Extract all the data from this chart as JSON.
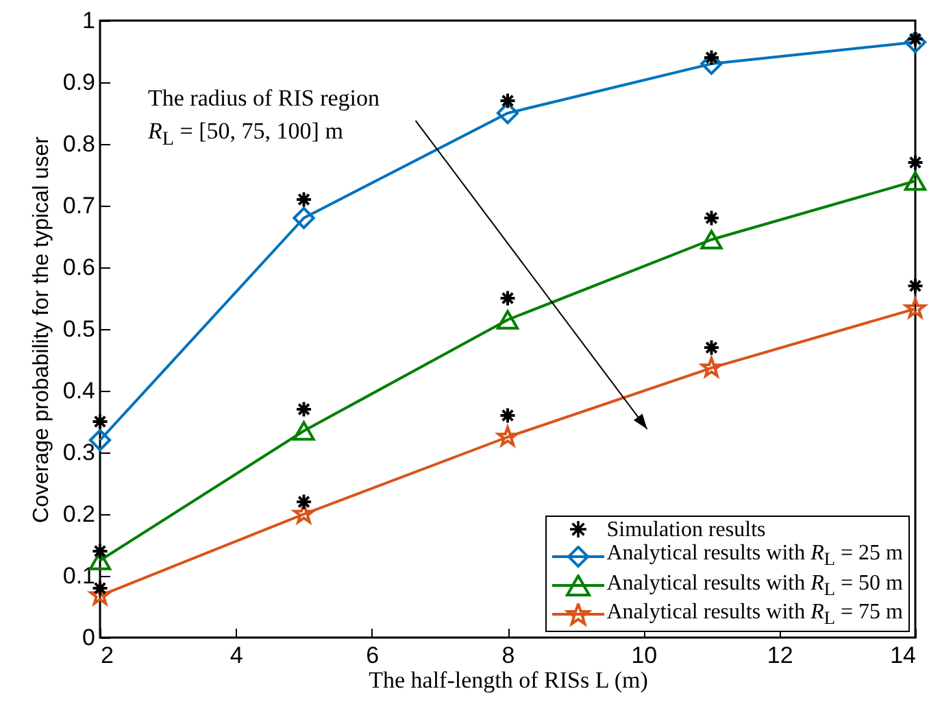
{
  "chart_data": {
    "type": "line",
    "xlabel": "The half-length of RISs L (m)",
    "ylabel": "Coverage probability for the typical user",
    "x": [
      2,
      5,
      8,
      11,
      14
    ],
    "xlim": [
      2,
      14
    ],
    "xticks": [
      2,
      4,
      6,
      8,
      10,
      12,
      14
    ],
    "ylim": [
      0,
      1
    ],
    "yticks": [
      0,
      0.1,
      0.2,
      0.3,
      0.4,
      0.5,
      0.6,
      0.7,
      0.8,
      0.9,
      1
    ],
    "legend": "bottom right",
    "series": [
      {
        "name": "Simulation results",
        "type": "scatter",
        "marker": "cross",
        "color": "#000000",
        "x": [
          2,
          5,
          8,
          11,
          14,
          2,
          5,
          8,
          11,
          14,
          2,
          5,
          8,
          11,
          14
        ],
        "values": [
          0.35,
          0.71,
          0.87,
          0.94,
          0.97,
          0.14,
          0.37,
          0.55,
          0.68,
          0.77,
          0.08,
          0.22,
          0.36,
          0.47,
          0.57
        ]
      },
      {
        "name": "Analytical results with R$_{L}$ = 25 m",
        "marker": "diamond",
        "color": "#0072bd",
        "values": [
          0.32,
          0.68,
          0.85,
          0.93,
          0.965
        ]
      },
      {
        "name": "Analytical results with R$_{L}$ = 50 m",
        "marker": "triangle",
        "color": "#008000",
        "values": [
          0.125,
          0.335,
          0.515,
          0.645,
          0.74
        ]
      },
      {
        "name": "Analytical results with R$_{L}$ = 75 m",
        "marker": "star",
        "color": "#d95319",
        "values": [
          0.068,
          0.2,
          0.325,
          0.437,
          0.533
        ]
      }
    ],
    "annotations": [
      "The radius of RIS region",
      "R$_{L}$ = [50, 75, 100] m"
    ]
  }
}
